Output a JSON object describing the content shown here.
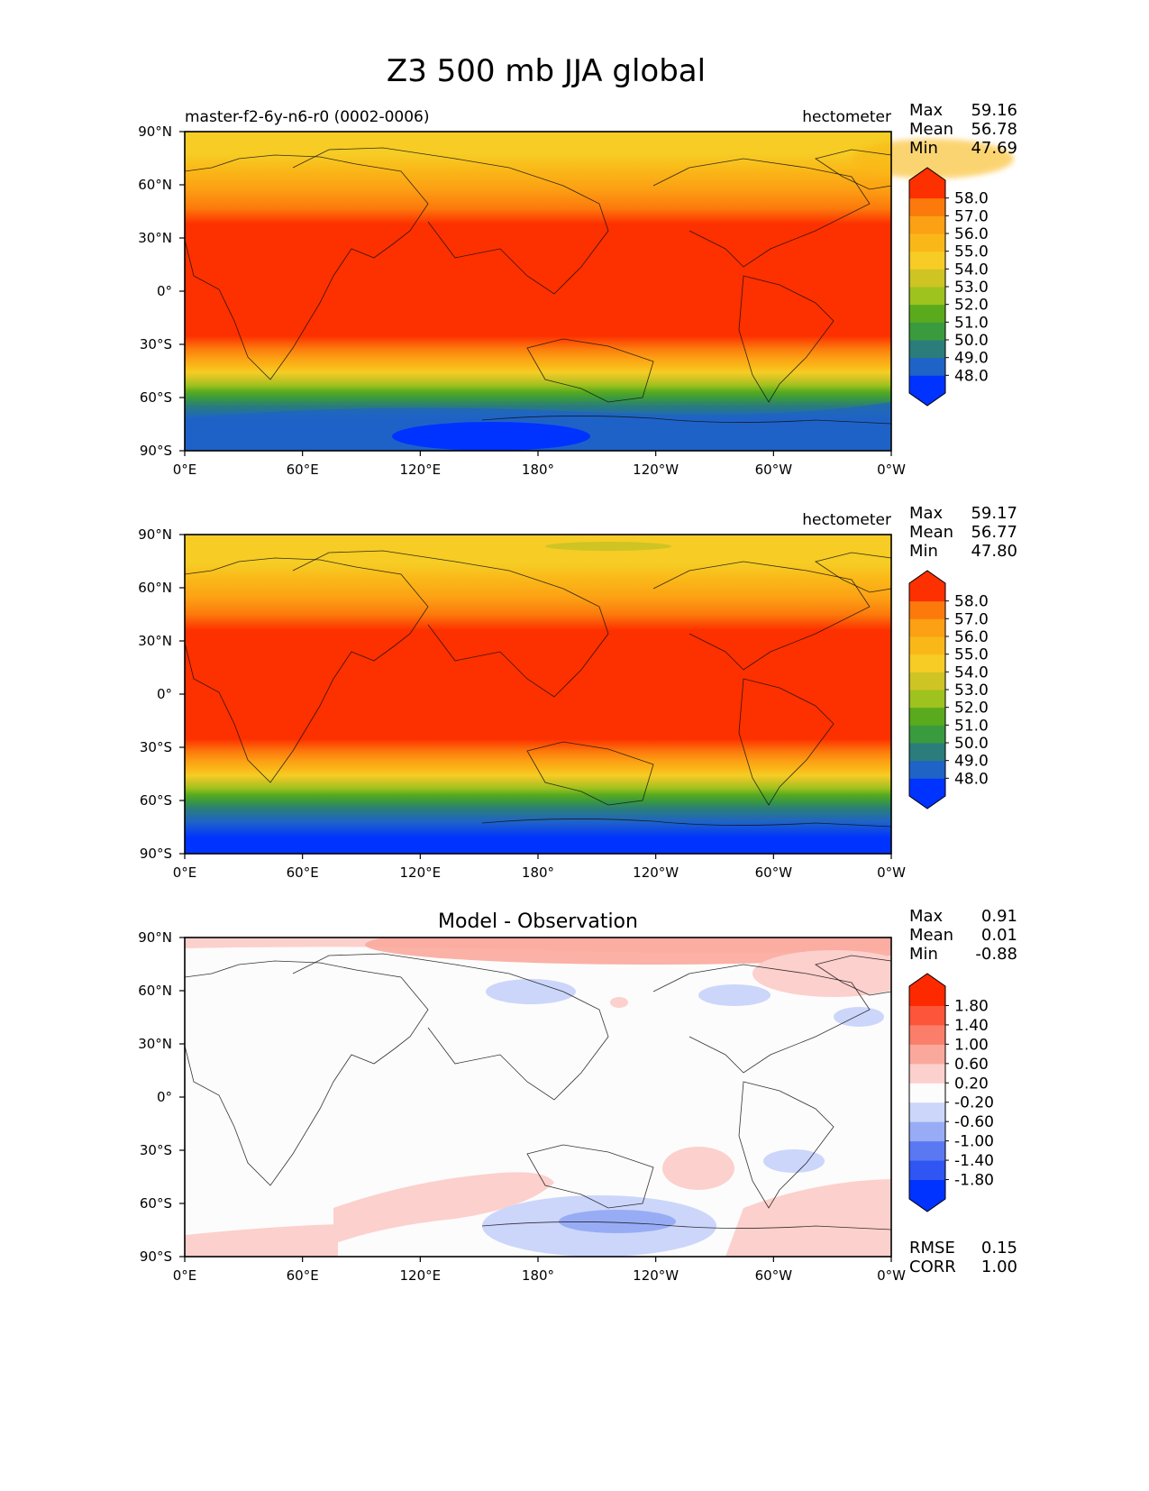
{
  "figure": {
    "title": "Z3 500 mb JJA global"
  },
  "lon_ticks": [
    "0°E",
    "60°E",
    "120°E",
    "180°",
    "120°W",
    "60°W",
    "0°W"
  ],
  "lat_ticks": [
    "90°N",
    "60°N",
    "30°N",
    "0°",
    "30°S",
    "60°S",
    "90°S"
  ],
  "panels": [
    {
      "left_label": "master-f2-6y-n6-r0 (0002-0006)",
      "center_label": "",
      "units": "hectometer",
      "stats": [
        {
          "name": "Max",
          "value": "59.16"
        },
        {
          "name": "Mean",
          "value": "56.78"
        },
        {
          "name": "Min",
          "value": "47.69"
        }
      ],
      "colorbar_labels": [
        "58.0",
        "57.0",
        "56.0",
        "55.0",
        "54.0",
        "53.0",
        "52.0",
        "51.0",
        "50.0",
        "49.0",
        "48.0"
      ],
      "colors": [
        "#0033ff",
        "#1f63c7",
        "#2a7d7a",
        "#3a9a3e",
        "#5aaa1e",
        "#9ec21e",
        "#cec424",
        "#f6cc25",
        "#fab818",
        "#fca014",
        "#fc7a0c",
        "#fd3000"
      ],
      "footer": []
    },
    {
      "left_label": "",
      "center_label": "",
      "units": "hectometer",
      "stats": [
        {
          "name": "Max",
          "value": "59.17"
        },
        {
          "name": "Mean",
          "value": "56.77"
        },
        {
          "name": "Min",
          "value": "47.80"
        }
      ],
      "colorbar_labels": [
        "58.0",
        "57.0",
        "56.0",
        "55.0",
        "54.0",
        "53.0",
        "52.0",
        "51.0",
        "50.0",
        "49.0",
        "48.0"
      ],
      "colors": [
        "#0033ff",
        "#1f63c7",
        "#2a7d7a",
        "#3a9a3e",
        "#5aaa1e",
        "#9ec21e",
        "#cec424",
        "#f6cc25",
        "#fab818",
        "#fca014",
        "#fc7a0c",
        "#fd3000"
      ],
      "footer": []
    },
    {
      "left_label": "",
      "center_label": "Model - Observation",
      "units": "",
      "stats": [
        {
          "name": "Max",
          "value": "0.91"
        },
        {
          "name": "Mean",
          "value": "0.01"
        },
        {
          "name": "Min",
          "value": "-0.88"
        }
      ],
      "colorbar_labels": [
        "1.80",
        "1.40",
        "1.00",
        "0.60",
        "0.20",
        "-0.20",
        "-0.60",
        "-1.00",
        "-1.40",
        "-1.80"
      ],
      "colors": [
        "#0033ff",
        "#2f55f2",
        "#5a78f2",
        "#98acf6",
        "#ccd6fa",
        "#fcfcfc",
        "#fcd0cc",
        "#fba89c",
        "#fb7e6a",
        "#fc553a",
        "#fd2a00"
      ],
      "footer": [
        {
          "name": "RMSE",
          "value": "0.15"
        },
        {
          "name": "CORR",
          "value": "1.00"
        }
      ]
    }
  ]
}
